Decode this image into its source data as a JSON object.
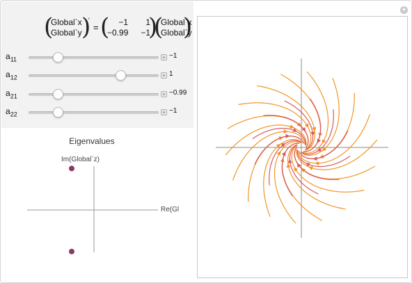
{
  "equation": {
    "lhs_top": "Global`x",
    "lhs_bottom": "Global`y",
    "prime": "′",
    "equals": "=",
    "matrix": [
      [
        "−1",
        "1"
      ],
      [
        "−0.99",
        "−1"
      ]
    ],
    "rhs_top": "Global`x",
    "rhs_bottom": "Global`y"
  },
  "sliders": [
    {
      "name": "a",
      "sub": "11",
      "value": "−1",
      "fraction": 0.23
    },
    {
      "name": "a",
      "sub": "12",
      "value": "1",
      "fraction": 0.72
    },
    {
      "name": "a",
      "sub": "21",
      "value": "−0.99",
      "fraction": 0.23
    },
    {
      "name": "a",
      "sub": "22",
      "value": "−1",
      "fraction": 0.23
    }
  ],
  "eigen": {
    "title": "Eigenvalues",
    "ylabel": "Im(Global`z)",
    "xlabel": "Re(Gl",
    "point_color": "#8b3a62",
    "points": [
      {
        "re": -1,
        "im": 0.995
      },
      {
        "re": -1,
        "im": -0.995
      }
    ]
  },
  "icons": {
    "corner": "plus-circle-icon"
  },
  "stream_colors": [
    "#7a1fa0",
    "#a0309a",
    "#c8457a",
    "#e86a45",
    "#f5a01a"
  ]
}
